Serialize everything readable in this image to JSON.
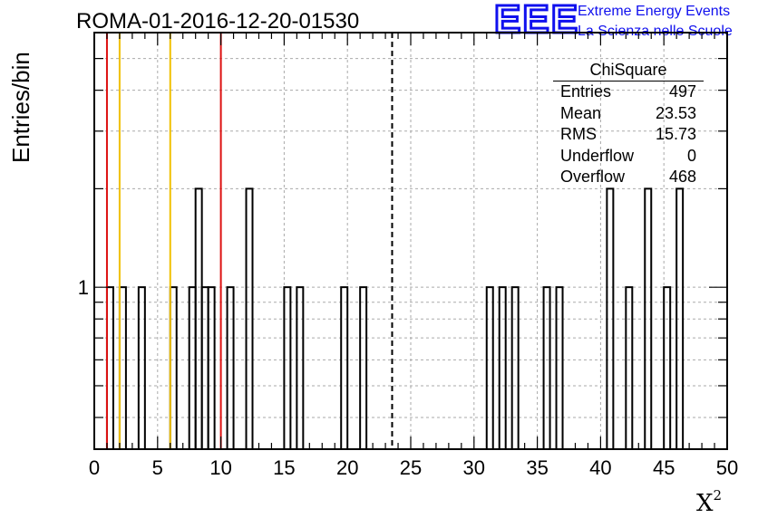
{
  "title": "ROMA-01-2016-12-20-01530",
  "logo": {
    "mark": "EEE",
    "line1": "Extreme Energy Events",
    "line2": "La Scienza nelle Scuole"
  },
  "stats": {
    "title": "ChiSquare",
    "rows": [
      {
        "label": "Entries",
        "value": "497"
      },
      {
        "label": "Mean",
        "value": "23.53"
      },
      {
        "label": "RMS",
        "value": "15.73"
      },
      {
        "label": "Underflow",
        "value": "0"
      },
      {
        "label": "Overflow",
        "value": "468"
      }
    ]
  },
  "chart_data": {
    "type": "bar",
    "subtype": "step-histogram",
    "title": "ROMA-01-2016-12-20-01530",
    "xlabel": "X",
    "xlabel_superscript": "2",
    "ylabel": "Entries/bin",
    "xlim": [
      0,
      50
    ],
    "ylim": [
      0.32,
      6
    ],
    "yscale": "log",
    "grid": true,
    "x_ticks": [
      0,
      5,
      10,
      15,
      20,
      25,
      30,
      35,
      40,
      45,
      50
    ],
    "y_tick_labels": [
      {
        "value": 1,
        "label": "1"
      }
    ],
    "bin_width": 0.5,
    "bins": [
      {
        "x": 1.0,
        "y": 1
      },
      {
        "x": 2.0,
        "y": 1
      },
      {
        "x": 3.5,
        "y": 1
      },
      {
        "x": 6.0,
        "y": 1
      },
      {
        "x": 7.5,
        "y": 1
      },
      {
        "x": 8.0,
        "y": 2
      },
      {
        "x": 8.5,
        "y": 1
      },
      {
        "x": 9.0,
        "y": 1
      },
      {
        "x": 10.5,
        "y": 1
      },
      {
        "x": 12.0,
        "y": 2
      },
      {
        "x": 15.0,
        "y": 1
      },
      {
        "x": 16.0,
        "y": 1
      },
      {
        "x": 19.5,
        "y": 1
      },
      {
        "x": 21.0,
        "y": 1
      },
      {
        "x": 31.0,
        "y": 1
      },
      {
        "x": 32.0,
        "y": 1
      },
      {
        "x": 33.0,
        "y": 1
      },
      {
        "x": 35.5,
        "y": 1
      },
      {
        "x": 36.5,
        "y": 1
      },
      {
        "x": 40.5,
        "y": 2
      },
      {
        "x": 42.0,
        "y": 1
      },
      {
        "x": 43.5,
        "y": 2
      },
      {
        "x": 45.0,
        "y": 1
      },
      {
        "x": 46.0,
        "y": 2
      }
    ],
    "vertical_lines": [
      {
        "x": 1,
        "color": "#dd1111",
        "style": "solid"
      },
      {
        "x": 2,
        "color": "#f0c000",
        "style": "solid"
      },
      {
        "x": 6,
        "color": "#f0c000",
        "style": "solid"
      },
      {
        "x": 10,
        "color": "#dd1111",
        "style": "solid"
      },
      {
        "x": 23.53,
        "color": "#000000",
        "style": "dashed"
      }
    ],
    "colors": {
      "histogram": "#000000",
      "grid": "#aaaaaa"
    }
  }
}
